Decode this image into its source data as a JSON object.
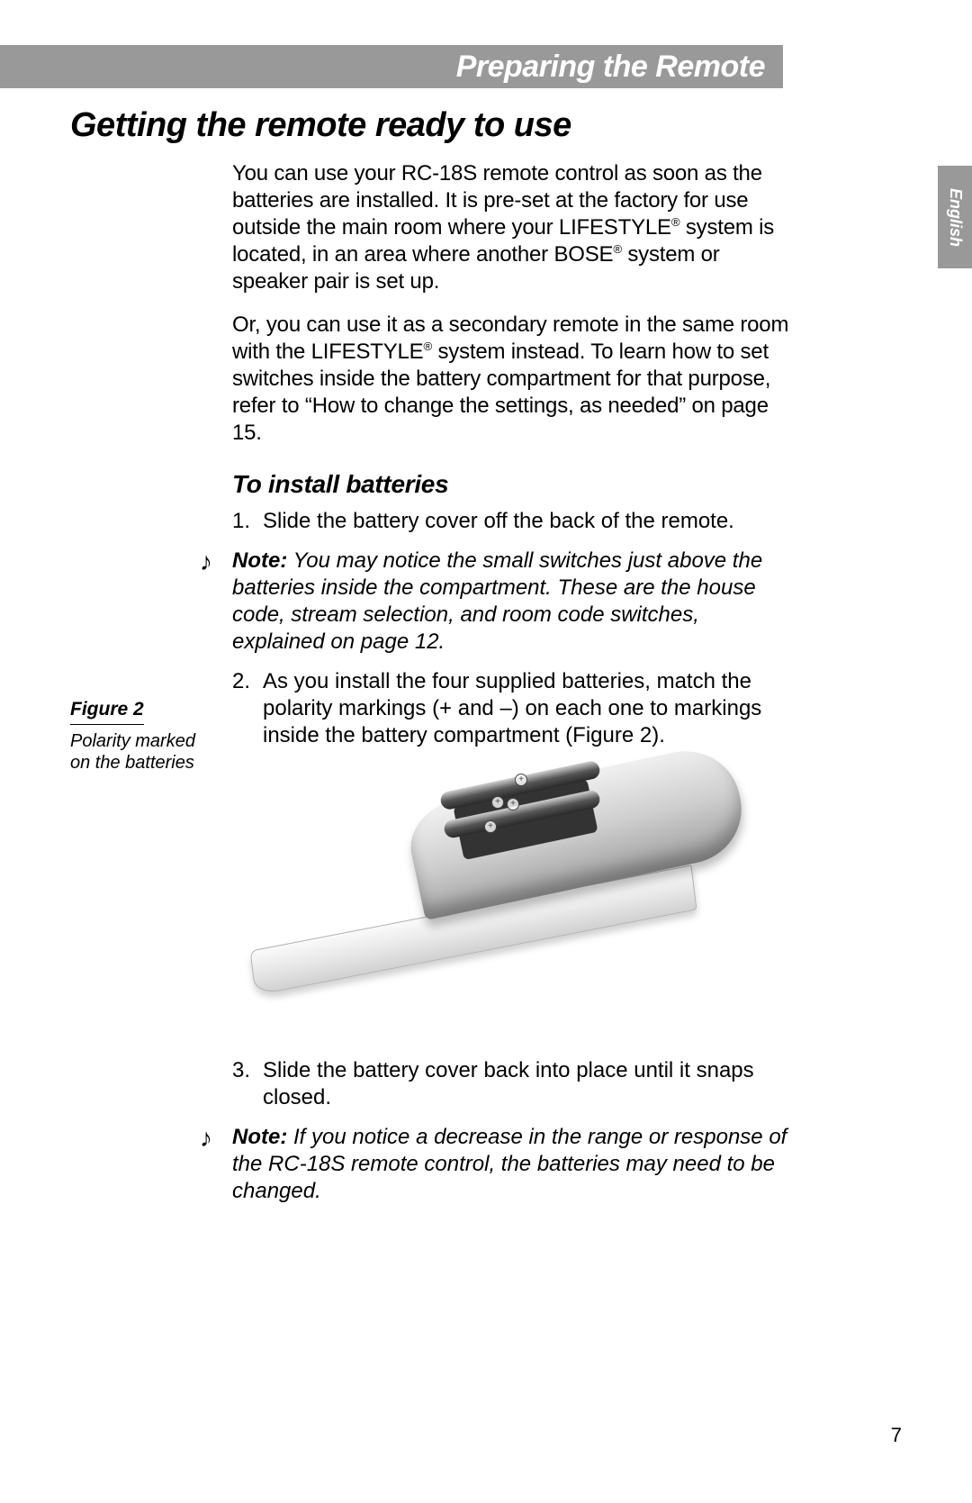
{
  "header": {
    "title": "Preparing the Remote"
  },
  "lang": "English",
  "heading": "Getting the remote ready to use",
  "para1_a": "You can use your RC-18S remote control as soon as the batteries are installed. It is pre-set at the factory for use outside the main room where your LIFESTYLE",
  "para1_b": " system is located, in an area where another BOSE",
  "para1_c": " system or speaker pair is set up.",
  "para2_a": "Or, you can use it as a secondary remote in the same room with the LIFESTYLE",
  "para2_b": " system instead. To learn how to set switches inside the battery compartment for that purpose, refer to “How to change the settings, as needed” on page 15.",
  "sub": "To install batteries",
  "step1_num": "1.",
  "step1": "Slide the battery cover off the back of the remote.",
  "note1_label": "Note:",
  "note1": " You may notice the small switches just above the batteries inside the compartment. These are the house code, stream selection, and room code switches, explained on page 12.",
  "step2_num": "2.",
  "step2": "As you install the four supplied batteries, match the polarity markings (+ and –) on each one to markings inside the battery compartment (Figure 2).",
  "step3_num": "3.",
  "step3": "Slide the battery cover back into place until it snaps closed.",
  "note2_label": "Note:",
  "note2": " If you notice a decrease in the range or response of the RC-18S remote control, the batteries may need to be changed.",
  "figure": {
    "title": "Figure 2",
    "caption": "Polarity marked on the batteries"
  },
  "reg": "®",
  "note_glyph": "♪",
  "plus": "+",
  "page": "7"
}
